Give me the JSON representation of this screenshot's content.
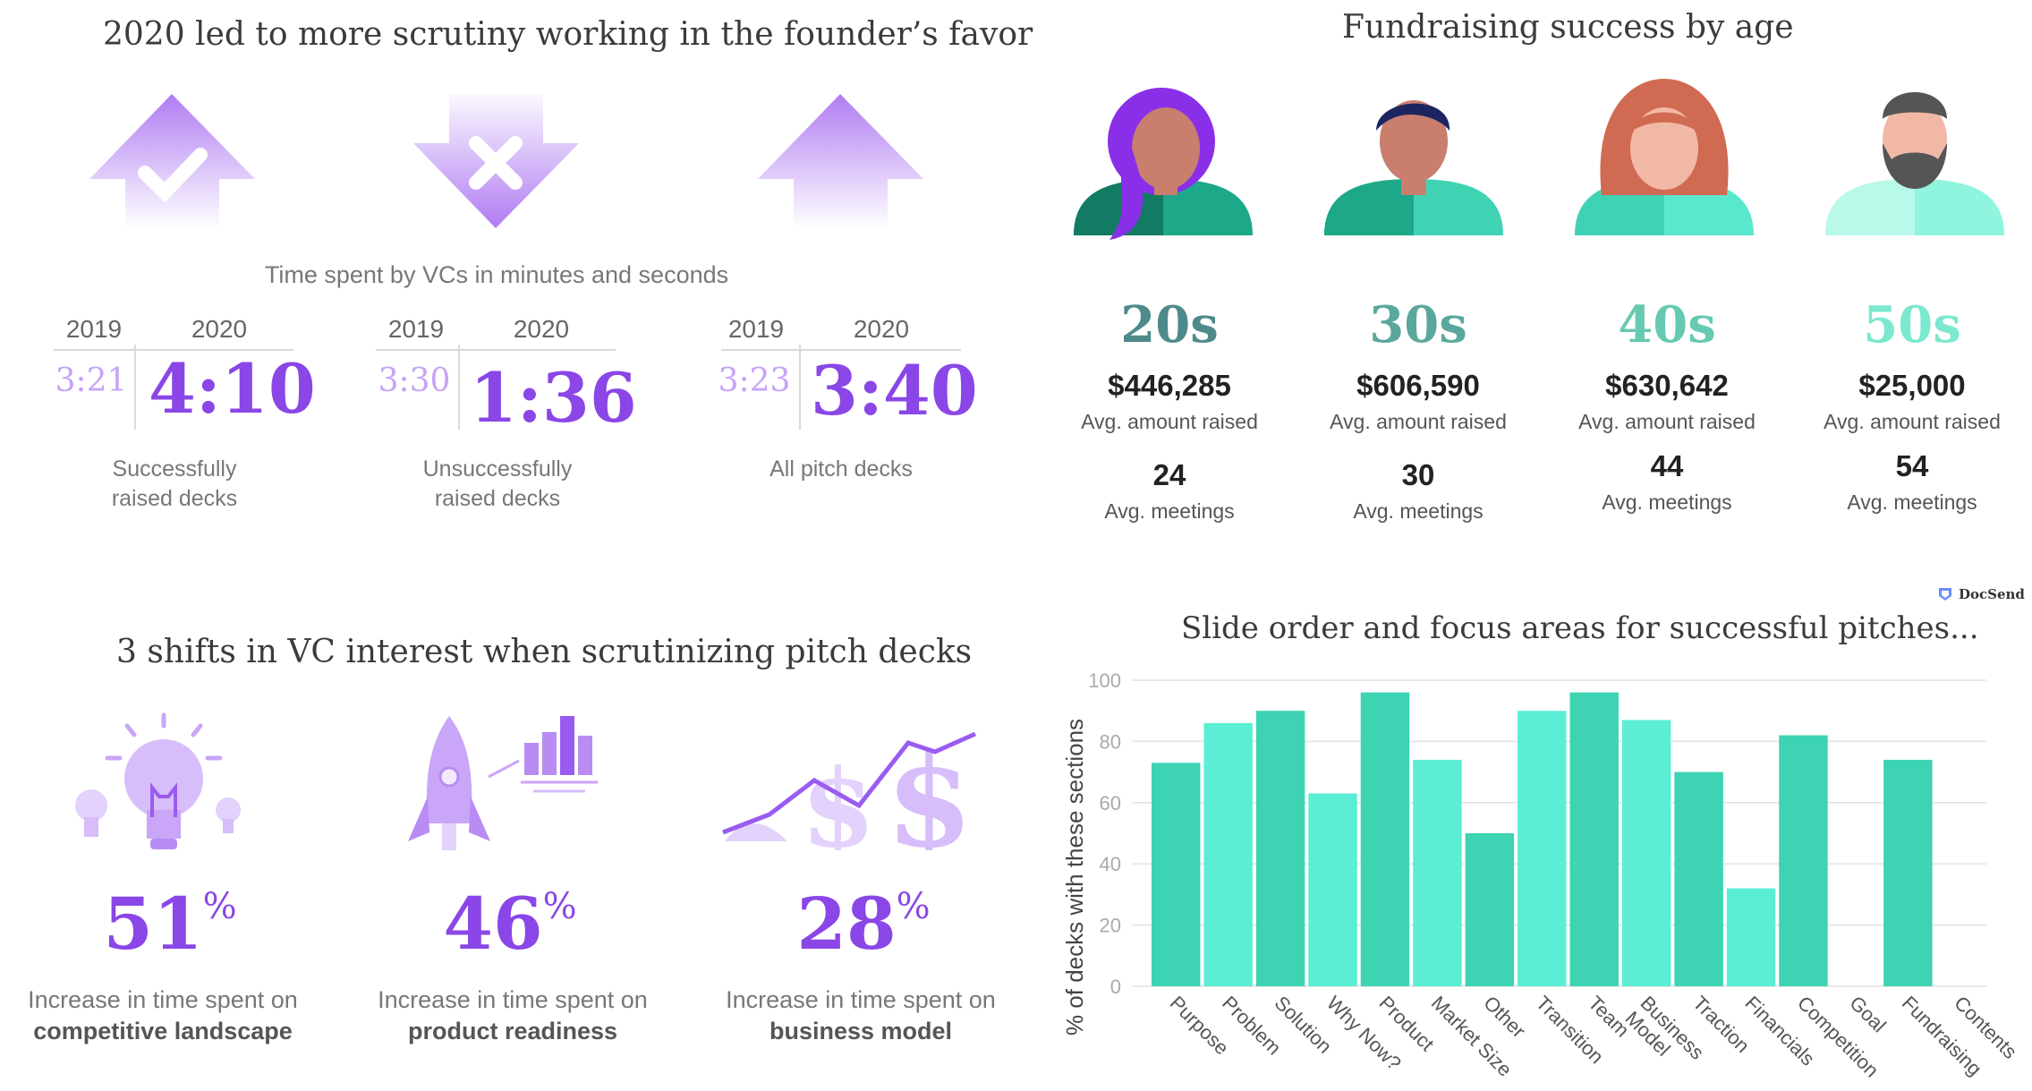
{
  "scrutiny": {
    "title": "2020 led to more scrutiny working in the founder’s favor",
    "subtitle": "Time spent by VCs in minutes and seconds",
    "blocks": [
      {
        "year_a": "2019",
        "year_b": "2020",
        "time_a": "3:21",
        "time_b": "4:10",
        "caption_1": "Successfully",
        "caption_2": "raised decks",
        "icon": "up-arrow-check-icon"
      },
      {
        "year_a": "2019",
        "year_b": "2020",
        "time_a": "3:30",
        "time_b": "1:36",
        "caption_1": "Unsuccessfully",
        "caption_2": "raised decks",
        "icon": "down-arrow-x-icon"
      },
      {
        "year_a": "2019",
        "year_b": "2020",
        "time_a": "3:23",
        "time_b": "3:40",
        "caption_1": "All pitch decks",
        "caption_2": "",
        "icon": "up-arrow-icon"
      }
    ]
  },
  "shifts": {
    "title": "3 shifts in VC interest when scrutinizing pitch decks",
    "items": [
      {
        "value": "51",
        "unit": "%",
        "line1": "Increase in time spent on",
        "line2": "competitive landscape",
        "icon": "lightbulb-icon"
      },
      {
        "value": "46",
        "unit": "%",
        "line1": "Increase in time spent on",
        "line2": "product readiness",
        "icon": "rocket-chart-icon"
      },
      {
        "value": "28",
        "unit": "%",
        "line1": "Increase in time spent on",
        "line2": "business model",
        "icon": "dollar-trend-icon"
      }
    ]
  },
  "age": {
    "title": "Fundraising success by age",
    "groups": [
      {
        "label": "20s",
        "amount": "$446,285",
        "amount_label": "Avg. amount raised",
        "meetings": "24",
        "meetings_label": "Avg. meetings",
        "color": "#4f8a8b"
      },
      {
        "label": "30s",
        "amount": "$606,590",
        "amount_label": "Avg. amount raised",
        "meetings": "30",
        "meetings_label": "Avg. meetings",
        "color": "#5aa89d"
      },
      {
        "label": "40s",
        "amount": "$630,642",
        "amount_label": "Avg. amount raised",
        "meetings": "44",
        "meetings_label": "Avg. meetings",
        "color": "#67c9b1"
      },
      {
        "label": "50s",
        "amount": "$25,000",
        "amount_label": "Avg. amount raised",
        "meetings": "54",
        "meetings_label": "Avg. meetings",
        "color": "#7be8cf"
      }
    ]
  },
  "brand": "DocSend",
  "chart_data": {
    "type": "bar",
    "title": "Slide order and focus areas for successful pitches...",
    "ylabel": "% of decks with these sections",
    "xlabel": "",
    "ylim": [
      0,
      100
    ],
    "yticks": [
      0,
      20,
      40,
      60,
      80,
      100
    ],
    "grid": true,
    "categories": [
      "Purpose",
      "Problem",
      "Solution",
      "Why Now?",
      "Product",
      "Market Size",
      "Other",
      "Transition",
      "Team",
      "Business Model",
      "Traction",
      "Financials",
      "Competition",
      "Goal",
      "Fundraising",
      "Contents"
    ],
    "values": [
      73,
      86,
      90,
      63,
      96,
      74,
      50,
      90,
      96,
      87,
      70,
      32,
      82,
      0,
      74,
      0
    ],
    "colors": [
      "#3dd3b3",
      "#5ceed4"
    ]
  }
}
